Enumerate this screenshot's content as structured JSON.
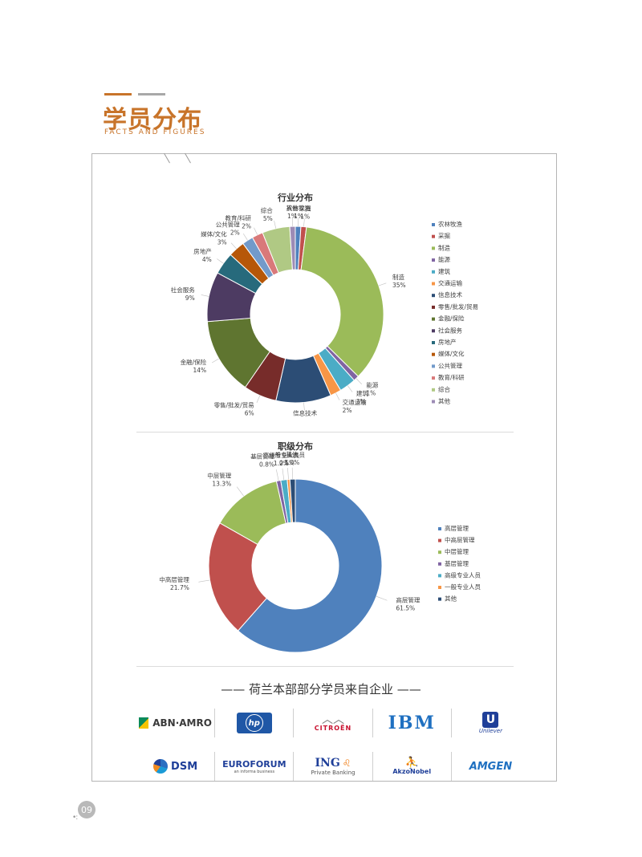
{
  "header": {
    "title": "学员分布",
    "subtitle": "FACTS AND FIGURES"
  },
  "colors": {
    "accent": "#c8742a"
  },
  "chart_data": [
    {
      "type": "donut",
      "title": "行业分布",
      "legend_position": "right",
      "categories": [
        "农林牧渔",
        "采掘",
        "制造",
        "能源",
        "建筑",
        "交通运输",
        "信息技术",
        "零售/批发/贸易",
        "金融/保险",
        "社会服务",
        "房地产",
        "媒体/文化",
        "公共管理",
        "教育/科研",
        "综合",
        "其他"
      ],
      "values": [
        1,
        1,
        35,
        1,
        3,
        2,
        10,
        6,
        14,
        9,
        4,
        3,
        2,
        2,
        5,
        1
      ],
      "labels": [
        "1%",
        "1%",
        "35%",
        "1%",
        "3%",
        "2%",
        "",
        "6%",
        "14%",
        "9%",
        "4%",
        "3%",
        "2%",
        "2%",
        "5%",
        "1%"
      ],
      "colors": [
        "#4f81bd",
        "#c0504d",
        "#9bbb59",
        "#8064a2",
        "#4bacc6",
        "#f79646",
        "#2c4d75",
        "#772c2a",
        "#5f7530",
        "#4d3b62",
        "#276a7c",
        "#b65708",
        "#729aca",
        "#d9797a",
        "#b0c984",
        "#9d8bb5"
      ]
    },
    {
      "type": "donut",
      "title": "职级分布",
      "legend_position": "right",
      "categories": [
        "高层管理",
        "中高层管理",
        "中层管理",
        "基层管理",
        "高级专业人员",
        "一般专业人员",
        "其他"
      ],
      "values": [
        61.5,
        21.7,
        13.3,
        0.8,
        1.2,
        0.5,
        1.0
      ],
      "labels": [
        "61.5%",
        "21.7%",
        "13.3%",
        "0.8%",
        "1.2%",
        "0.5%",
        "1.0%"
      ],
      "colors": [
        "#4f81bd",
        "#c0504d",
        "#9bbb59",
        "#8064a2",
        "#4bacc6",
        "#f79646",
        "#2c4d75"
      ]
    }
  ],
  "companies": {
    "title": "—— 荷兰本部部分学员来自企业 ——",
    "row1": [
      "ABN·AMRO",
      "hp",
      "CITROËN",
      "IBM",
      "Unilever"
    ],
    "row2": [
      "DSM",
      "EUROFORUM",
      "ING",
      "AkzoNobel",
      "AMGEN"
    ],
    "euroforum_sub": "an informa business",
    "ing_sub": "Private Banking"
  },
  "page": {
    "number": "09"
  }
}
